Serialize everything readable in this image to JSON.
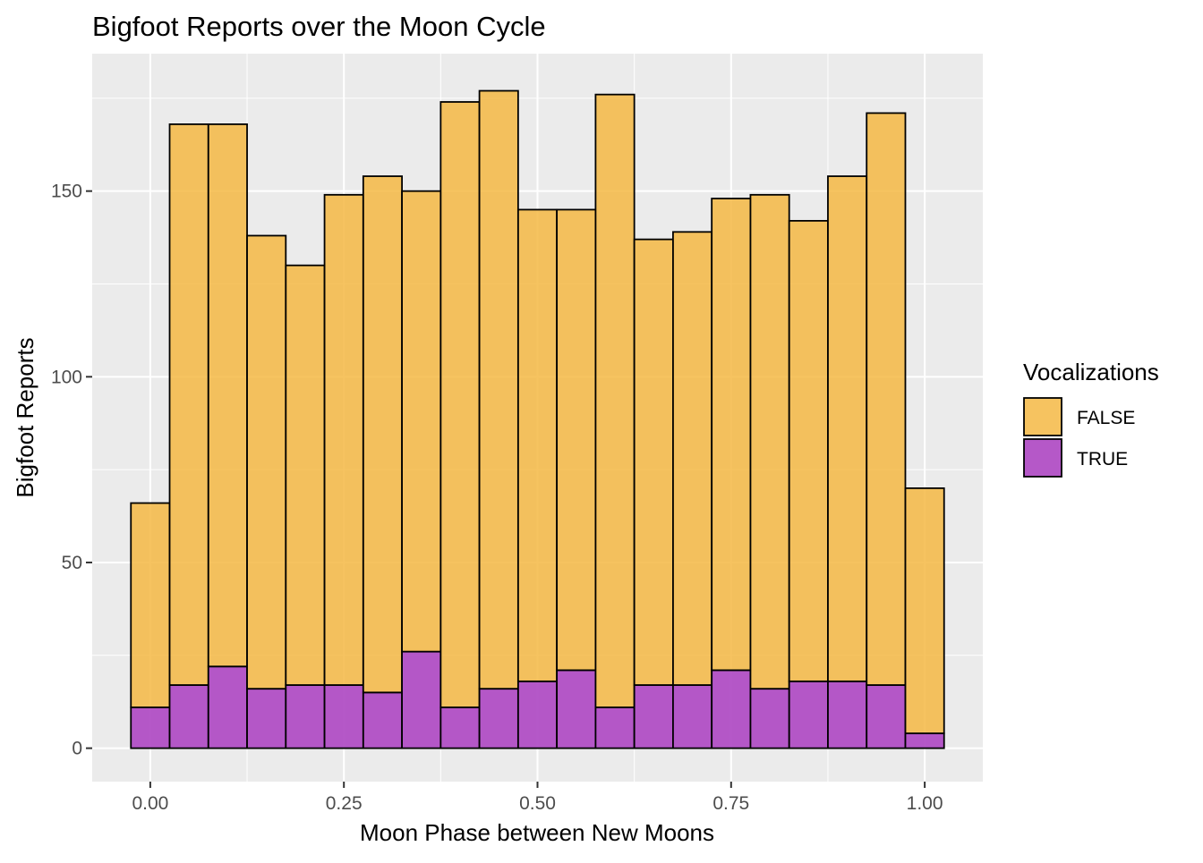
{
  "chart_data": {
    "type": "bar",
    "stacked": true,
    "title": "Bigfoot Reports over the Moon Cycle",
    "xlabel": "Moon Phase between New Moons",
    "ylabel": "Bigfoot Reports",
    "bin_width": 0.05,
    "x": [
      0.0,
      0.05,
      0.1,
      0.15,
      0.2,
      0.25,
      0.3,
      0.35,
      0.4,
      0.45,
      0.5,
      0.55,
      0.6,
      0.65,
      0.7,
      0.75,
      0.8,
      0.85,
      0.9,
      0.95,
      1.0
    ],
    "xlim": [
      -0.075,
      1.075
    ],
    "ylim": [
      -9,
      187
    ],
    "x_ticks": [
      0,
      0.25,
      0.5,
      0.75,
      1
    ],
    "x_tick_labels": [
      "0.00",
      "0.25",
      "0.50",
      "0.75",
      "1.00"
    ],
    "y_ticks": [
      0,
      50,
      100,
      150
    ],
    "y_tick_labels": [
      "0",
      "50",
      "100",
      "150"
    ],
    "grid": true,
    "legend_position": "right",
    "legend_title": "Vocalizations",
    "series": [
      {
        "name": "FALSE",
        "color": "#F5B844",
        "values": [
          55,
          151,
          146,
          122,
          113,
          132,
          139,
          124,
          163,
          161,
          127,
          124,
          165,
          120,
          122,
          127,
          133,
          124,
          136,
          154,
          66
        ]
      },
      {
        "name": "TRUE",
        "color": "#B14FC5",
        "values": [
          11,
          17,
          22,
          16,
          17,
          17,
          15,
          26,
          11,
          16,
          18,
          21,
          11,
          17,
          17,
          21,
          16,
          18,
          18,
          17,
          4
        ]
      }
    ]
  },
  "colors": {
    "panel_background": "#EBEBEB",
    "grid_line": "#FFFFFF",
    "bar_outline": "#000000",
    "axis_text": "#4D4D4D"
  }
}
